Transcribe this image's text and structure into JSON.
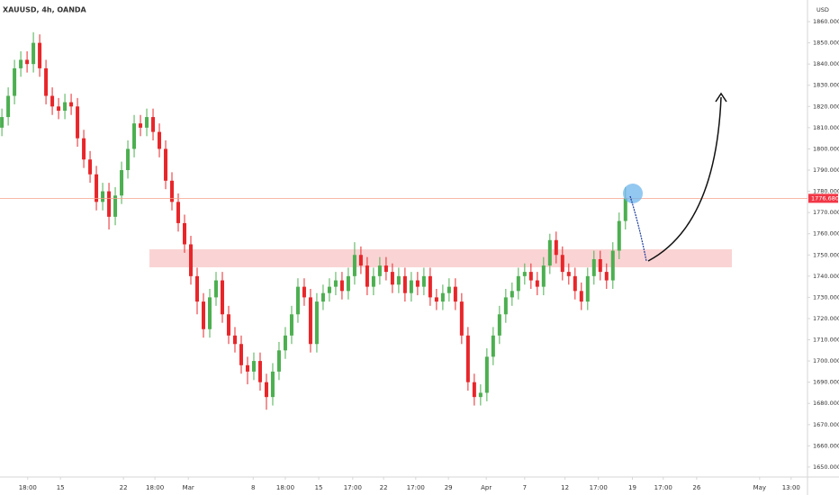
{
  "chart_data": {
    "type": "candlestick",
    "title": "XAUUSD, 4h, OANDA",
    "currency": "USD",
    "up_color": "#4caf50",
    "down_color": "#e8262a",
    "open": [
      1810,
      1815,
      1825,
      1838,
      1842,
      1840,
      1850,
      1838,
      1825,
      1820,
      1818,
      1822,
      1820,
      1805,
      1795,
      1788,
      1775,
      1780,
      1768,
      1778,
      1790,
      1800,
      1812,
      1810,
      1815,
      1808,
      1800,
      1785,
      1775,
      1765,
      1755,
      1740,
      1728,
      1715,
      1730,
      1738,
      1722,
      1712,
      1708,
      1698,
      1695,
      1700,
      1690,
      1683,
      1695,
      1705,
      1712,
      1722,
      1735,
      1730,
      1708,
      1728,
      1732,
      1735,
      1738,
      1733,
      1740,
      1750,
      1745,
      1735,
      1740,
      1745,
      1742,
      1736,
      1740,
      1732,
      1738,
      1735,
      1740,
      1730,
      1728,
      1732,
      1735,
      1728,
      1712,
      1690,
      1683,
      1685,
      1702,
      1712,
      1722,
      1730,
      1733,
      1740,
      1742,
      1738,
      1735,
      1745,
      1757,
      1750,
      1742,
      1740,
      1733,
      1728,
      1740,
      1748,
      1742,
      1738,
      1752,
      1766
    ],
    "high": [
      1819,
      1829,
      1842,
      1846,
      1846,
      1855,
      1854,
      1842,
      1829,
      1824,
      1826,
      1826,
      1824,
      1809,
      1799,
      1792,
      1784,
      1784,
      1782,
      1794,
      1804,
      1816,
      1816,
      1819,
      1819,
      1812,
      1804,
      1789,
      1779,
      1769,
      1759,
      1744,
      1732,
      1734,
      1742,
      1742,
      1726,
      1716,
      1712,
      1702,
      1704,
      1704,
      1694,
      1699,
      1709,
      1716,
      1726,
      1739,
      1739,
      1734,
      1732,
      1736,
      1739,
      1742,
      1742,
      1744,
      1756,
      1754,
      1749,
      1744,
      1749,
      1749,
      1746,
      1744,
      1744,
      1742,
      1742,
      1744,
      1744,
      1734,
      1736,
      1739,
      1739,
      1732,
      1716,
      1694,
      1689,
      1706,
      1716,
      1726,
      1734,
      1737,
      1744,
      1746,
      1746,
      1742,
      1749,
      1760,
      1761,
      1754,
      1746,
      1744,
      1737,
      1744,
      1752,
      1752,
      1746,
      1756,
      1770,
      1782
    ],
    "low": [
      1806,
      1811,
      1821,
      1834,
      1836,
      1836,
      1834,
      1821,
      1816,
      1814,
      1814,
      1816,
      1801,
      1791,
      1784,
      1771,
      1771,
      1762,
      1764,
      1774,
      1786,
      1796,
      1806,
      1806,
      1804,
      1796,
      1781,
      1771,
      1761,
      1751,
      1736,
      1722,
      1711,
      1711,
      1726,
      1718,
      1708,
      1704,
      1694,
      1689,
      1691,
      1686,
      1677,
      1679,
      1691,
      1701,
      1708,
      1718,
      1726,
      1704,
      1704,
      1724,
      1728,
      1731,
      1729,
      1729,
      1736,
      1741,
      1731,
      1731,
      1736,
      1738,
      1732,
      1732,
      1728,
      1728,
      1731,
      1731,
      1726,
      1724,
      1724,
      1728,
      1724,
      1708,
      1686,
      1679,
      1679,
      1681,
      1698,
      1708,
      1718,
      1726,
      1729,
      1736,
      1734,
      1731,
      1731,
      1741,
      1746,
      1738,
      1736,
      1729,
      1724,
      1724,
      1736,
      1738,
      1734,
      1734,
      1748,
      1762
    ],
    "close": [
      1815,
      1825,
      1838,
      1842,
      1840,
      1850,
      1838,
      1825,
      1820,
      1818,
      1822,
      1820,
      1805,
      1795,
      1788,
      1775,
      1780,
      1768,
      1778,
      1790,
      1800,
      1812,
      1810,
      1815,
      1808,
      1800,
      1785,
      1775,
      1765,
      1755,
      1740,
      1728,
      1715,
      1730,
      1738,
      1722,
      1712,
      1708,
      1698,
      1695,
      1700,
      1690,
      1683,
      1695,
      1705,
      1712,
      1722,
      1735,
      1730,
      1708,
      1728,
      1732,
      1735,
      1738,
      1733,
      1740,
      1750,
      1745,
      1735,
      1740,
      1745,
      1742,
      1736,
      1740,
      1732,
      1738,
      1735,
      1740,
      1730,
      1728,
      1732,
      1735,
      1728,
      1712,
      1690,
      1683,
      1685,
      1702,
      1712,
      1722,
      1730,
      1733,
      1740,
      1742,
      1738,
      1735,
      1745,
      1757,
      1750,
      1742,
      1740,
      1733,
      1728,
      1740,
      1748,
      1742,
      1738,
      1752,
      1766,
      1776.68
    ],
    "last_price": {
      "value": 1776.68,
      "label": "1776.680"
    },
    "last_price_color": "#f23645",
    "ylim": [
      1645.3,
      1870.2
    ],
    "yticks": [
      {
        "value": 1650,
        "label": "1650.000"
      },
      {
        "value": 1660,
        "label": "1660.000"
      },
      {
        "value": 1670,
        "label": "1670.000"
      },
      {
        "value": 1680,
        "label": "1680.000"
      },
      {
        "value": 1690,
        "label": "1690.000"
      },
      {
        "value": 1700,
        "label": "1700.000"
      },
      {
        "value": 1710,
        "label": "1710.000"
      },
      {
        "value": 1720,
        "label": "1720.000"
      },
      {
        "value": 1730,
        "label": "1730.000"
      },
      {
        "value": 1740,
        "label": "1740.000"
      },
      {
        "value": 1750,
        "label": "1750.000"
      },
      {
        "value": 1760,
        "label": "1760.000"
      },
      {
        "value": 1770,
        "label": "1770.000"
      },
      {
        "value": 1780,
        "label": "1780.000"
      },
      {
        "value": 1790,
        "label": "1790.000"
      },
      {
        "value": 1800,
        "label": "1800.000"
      },
      {
        "value": 1810,
        "label": "1810.000"
      },
      {
        "value": 1820,
        "label": "1820.000"
      },
      {
        "value": 1830,
        "label": "1830.000"
      },
      {
        "value": 1840,
        "label": "1840.000"
      },
      {
        "value": 1850,
        "label": "1850.000"
      },
      {
        "value": 1860,
        "label": "1860.000"
      }
    ],
    "xlim": [
      -0.3,
      127.9
    ],
    "xticks": [
      {
        "value": 4.1,
        "label": "18:00"
      },
      {
        "value": 9.3,
        "label": "15"
      },
      {
        "value": 19.3,
        "label": "22"
      },
      {
        "value": 24.3,
        "label": "18:00"
      },
      {
        "value": 29.6,
        "label": "Mar"
      },
      {
        "value": 39.9,
        "label": "8"
      },
      {
        "value": 45,
        "label": "18:00"
      },
      {
        "value": 50.3,
        "label": "15"
      },
      {
        "value": 55.7,
        "label": "17:00"
      },
      {
        "value": 60.6,
        "label": "22"
      },
      {
        "value": 65.7,
        "label": "17:00"
      },
      {
        "value": 70.9,
        "label": "29"
      },
      {
        "value": 76.9,
        "label": "Apr"
      },
      {
        "value": 83,
        "label": "7"
      },
      {
        "value": 89.4,
        "label": "12"
      },
      {
        "value": 94.7,
        "label": "17:00"
      },
      {
        "value": 100.1,
        "label": "19"
      },
      {
        "value": 105,
        "label": "17:00"
      },
      {
        "value": 110.3,
        "label": "26"
      },
      {
        "value": 120.3,
        "label": "May"
      },
      {
        "value": 125.3,
        "label": "13:00"
      }
    ],
    "grid": false
  }
}
